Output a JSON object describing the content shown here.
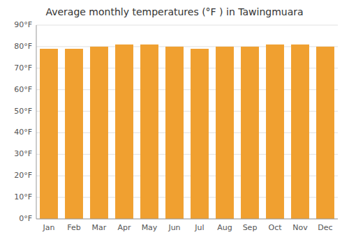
{
  "chart_data": {
    "type": "bar",
    "title": "Average monthly temperatures (°F ) in Tawingmuara",
    "categories": [
      "Jan",
      "Feb",
      "Mar",
      "Apr",
      "May",
      "Jun",
      "Jul",
      "Aug",
      "Sep",
      "Oct",
      "Nov",
      "Dec"
    ],
    "values": [
      79,
      79,
      80,
      81,
      81,
      80,
      79,
      80,
      80,
      81,
      81,
      80
    ],
    "ylim": [
      0,
      90
    ],
    "yticks": [
      {
        "value": 0,
        "label": "0°F"
      },
      {
        "value": 10,
        "label": "10°F"
      },
      {
        "value": 20,
        "label": "20°F"
      },
      {
        "value": 30,
        "label": "30°F"
      },
      {
        "value": 40,
        "label": "40°F"
      },
      {
        "value": 50,
        "label": "50°F"
      },
      {
        "value": 60,
        "label": "60°F"
      },
      {
        "value": 70,
        "label": "70°F"
      },
      {
        "value": 80,
        "label": "80°F"
      },
      {
        "value": 90,
        "label": "90°F"
      }
    ],
    "grid": true
  }
}
